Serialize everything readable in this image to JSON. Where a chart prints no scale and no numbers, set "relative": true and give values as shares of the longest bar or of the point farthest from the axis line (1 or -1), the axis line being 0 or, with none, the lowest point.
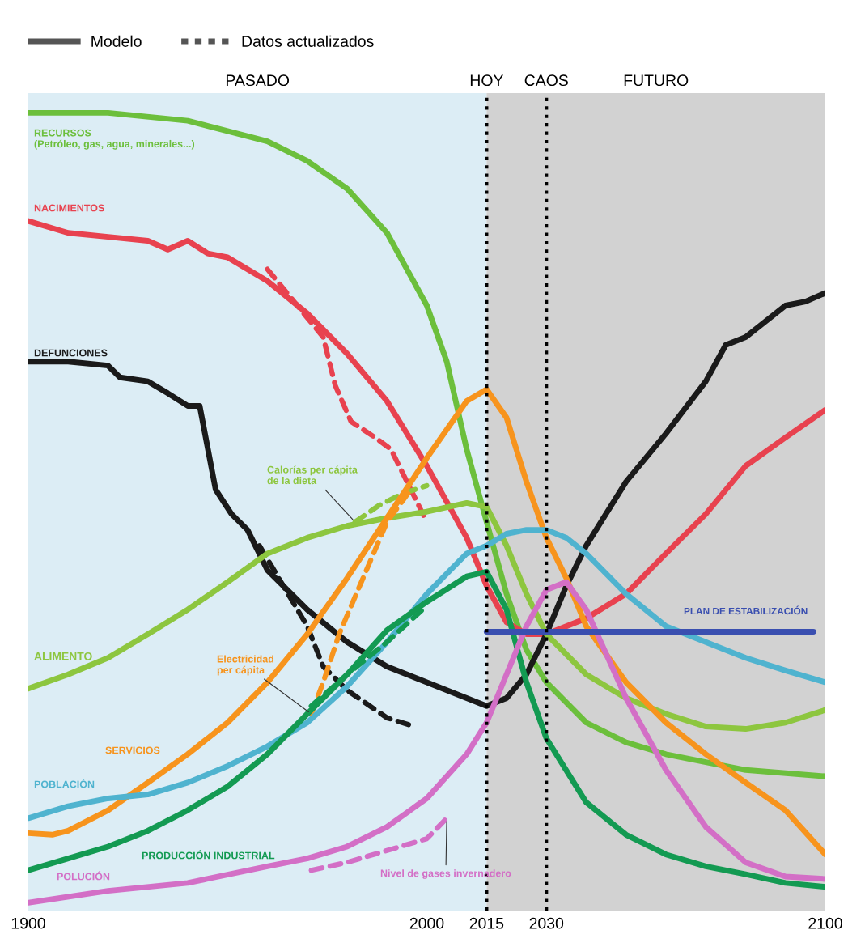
{
  "chart_data": {
    "type": "line",
    "relative": true,
    "xlim": [
      1900,
      2100
    ],
    "xticks": [
      1900,
      2000,
      2015,
      2030,
      2100
    ],
    "grid": false,
    "legend": "top left",
    "line_style": "solid",
    "annotations": [
      "Modelo",
      "Datos actualizados"
    ],
    "bands": [
      {
        "axis": "x",
        "from": 1900,
        "to": 2015,
        "label": "PASADO",
        "color": "#dcedf5"
      },
      {
        "axis": "x",
        "from": 2015,
        "to": 2100,
        "label": "FUTURO",
        "color": "#d2d2d2"
      }
    ],
    "ref_lines": [
      {
        "axis": "x",
        "value": 2015,
        "label": "HOY",
        "color": "#000000",
        "line_style": "dotted"
      },
      {
        "axis": "x",
        "value": 2030,
        "label": "CAOS",
        "color": "#000000",
        "line_style": "dotted"
      }
    ],
    "series": [
      {
        "name": "RECURSOS\n(Petróleo, gas, agua, minerales...)",
        "color": "#6cbf3c",
        "x": [
          1900,
          1920,
          1940,
          1960,
          1970,
          1980,
          1990,
          2000,
          2005,
          2010,
          2015,
          2020,
          2025,
          2030,
          2040,
          2050,
          2060,
          2080,
          2100
        ],
        "values": [
          1.0,
          1.0,
          0.99,
          0.964,
          0.939,
          0.904,
          0.848,
          0.756,
          0.685,
          0.574,
          0.482,
          0.391,
          0.32,
          0.279,
          0.228,
          0.203,
          0.188,
          0.168,
          0.16
        ]
      },
      {
        "name": "NACIMIENTOS",
        "color": "#e8424f",
        "x": [
          1900,
          1910,
          1920,
          1930,
          1935,
          1940,
          1945,
          1950,
          1960,
          1970,
          1980,
          1990,
          2000,
          2010,
          2015,
          2020,
          2025,
          2030,
          2040,
          2050,
          2060,
          2070,
          2080,
          2090,
          2100
        ],
        "values": [
          0.863,
          0.848,
          0.843,
          0.838,
          0.827,
          0.838,
          0.822,
          0.817,
          0.787,
          0.746,
          0.695,
          0.635,
          0.553,
          0.462,
          0.401,
          0.355,
          0.34,
          0.34,
          0.36,
          0.391,
          0.442,
          0.492,
          0.553,
          0.589,
          0.624
        ]
      },
      {
        "color": "#e8424f",
        "line_style": "dashed",
        "x": [
          1960,
          1974,
          1977,
          1981,
          1987,
          1991,
          1995,
          2000
        ],
        "values": [
          0.802,
          0.716,
          0.655,
          0.609,
          0.589,
          0.574,
          0.533,
          0.482
        ]
      },
      {
        "name": "DEFUNCIONES",
        "color": "#1a1a1a",
        "x": [
          1900,
          1910,
          1920,
          1923,
          1930,
          1935,
          1940,
          1943,
          1947,
          1951,
          1955,
          1960,
          1970,
          1980,
          1990,
          2000,
          2010,
          2015,
          2020,
          2025,
          2030,
          2035,
          2040,
          2050,
          2060,
          2070,
          2075,
          2080,
          2085,
          2090,
          2095,
          2100
        ],
        "values": [
          0.685,
          0.685,
          0.68,
          0.665,
          0.66,
          0.645,
          0.629,
          0.629,
          0.523,
          0.492,
          0.472,
          0.421,
          0.371,
          0.33,
          0.299,
          0.279,
          0.259,
          0.249,
          0.259,
          0.289,
          0.34,
          0.401,
          0.452,
          0.533,
          0.594,
          0.66,
          0.706,
          0.716,
          0.736,
          0.756,
          0.761,
          0.772
        ]
      },
      {
        "color": "#1a1a1a",
        "line_style": "dashed",
        "x": [
          1958,
          1964,
          1970,
          1974,
          1980,
          1990,
          1997
        ],
        "values": [
          0.452,
          0.401,
          0.35,
          0.299,
          0.269,
          0.234,
          0.223
        ]
      },
      {
        "name": "ALIMENTO",
        "color": "#8dc63f",
        "x": [
          1900,
          1910,
          1920,
          1930,
          1940,
          1950,
          1960,
          1970,
          1980,
          1990,
          2000,
          2010,
          2015,
          2020,
          2025,
          2030,
          2040,
          2050,
          2060,
          2070,
          2080,
          2090,
          2100
        ],
        "values": [
          0.271,
          0.289,
          0.31,
          0.34,
          0.371,
          0.406,
          0.442,
          0.462,
          0.477,
          0.487,
          0.495,
          0.506,
          0.501,
          0.452,
          0.391,
          0.34,
          0.289,
          0.259,
          0.239,
          0.223,
          0.22,
          0.228,
          0.244
        ]
      },
      {
        "name": "Calorías per cápita\nde la dieta",
        "color": "#8dc63f",
        "line_style": "dashed",
        "x": [
          1982,
          1988,
          1994,
          2000
        ],
        "values": [
          0.482,
          0.503,
          0.518,
          0.528
        ]
      },
      {
        "name": "SERVICIOS",
        "color": "#f7941d",
        "x": [
          1900,
          1906,
          1910,
          1920,
          1930,
          1940,
          1950,
          1960,
          1970,
          1980,
          1990,
          2000,
          2010,
          2015,
          2020,
          2025,
          2030,
          2035,
          2040,
          2050,
          2060,
          2070,
          2080,
          2090,
          2100
        ],
        "values": [
          0.088,
          0.086,
          0.091,
          0.117,
          0.152,
          0.188,
          0.228,
          0.279,
          0.34,
          0.411,
          0.487,
          0.563,
          0.635,
          0.65,
          0.614,
          0.533,
          0.462,
          0.411,
          0.35,
          0.279,
          0.228,
          0.188,
          0.152,
          0.117,
          0.061
        ]
      },
      {
        "name": "Electricidad\nper cápita",
        "color": "#f7941d",
        "line_style": "dashed",
        "x": [
          1971,
          1974,
          1978,
          1984,
          1990,
          1996
        ],
        "values": [
          0.239,
          0.279,
          0.34,
          0.411,
          0.482,
          0.523
        ]
      },
      {
        "name": "POBLACIÓN",
        "color": "#4fb3cf",
        "x": [
          1900,
          1910,
          1920,
          1930,
          1940,
          1950,
          1960,
          1970,
          1980,
          1990,
          2000,
          2010,
          2015,
          2020,
          2025,
          2030,
          2035,
          2040,
          2050,
          2060,
          2070,
          2080,
          2090,
          2100
        ],
        "values": [
          0.107,
          0.122,
          0.132,
          0.137,
          0.152,
          0.173,
          0.198,
          0.228,
          0.274,
          0.33,
          0.391,
          0.442,
          0.452,
          0.467,
          0.472,
          0.472,
          0.462,
          0.442,
          0.391,
          0.35,
          0.33,
          0.31,
          0.294,
          0.279
        ]
      },
      {
        "name": "PRODUCCIÓN INDUSTRIAL",
        "color": "#139a52",
        "x": [
          1900,
          1910,
          1920,
          1930,
          1940,
          1950,
          1960,
          1970,
          1980,
          1990,
          2000,
          2010,
          2015,
          2020,
          2025,
          2030,
          2040,
          2050,
          2060,
          2070,
          2080,
          2090,
          2100
        ],
        "values": [
          0.041,
          0.056,
          0.071,
          0.091,
          0.117,
          0.147,
          0.188,
          0.239,
          0.289,
          0.345,
          0.381,
          0.413,
          0.419,
          0.371,
          0.279,
          0.208,
          0.127,
          0.086,
          0.061,
          0.046,
          0.036,
          0.025,
          0.02
        ]
      },
      {
        "color": "#139a52",
        "line_style": "dashed",
        "x": [
          1971,
          1980,
          1990,
          2000
        ],
        "values": [
          0.249,
          0.289,
          0.33,
          0.376
        ]
      },
      {
        "name": "POLUCIÓN",
        "color": "#d36fc6",
        "x": [
          1900,
          1920,
          1940,
          1960,
          1970,
          1980,
          1990,
          2000,
          2010,
          2015,
          2020,
          2025,
          2030,
          2035,
          2040,
          2050,
          2060,
          2070,
          2080,
          2090,
          2100
        ],
        "values": [
          0.0,
          0.015,
          0.025,
          0.046,
          0.056,
          0.071,
          0.096,
          0.132,
          0.188,
          0.228,
          0.289,
          0.35,
          0.396,
          0.406,
          0.371,
          0.259,
          0.168,
          0.096,
          0.051,
          0.033,
          0.03
        ]
      },
      {
        "name": "Nivel de gases invernadero",
        "color": "#d36fc6",
        "line_style": "dashed",
        "x": [
          1971,
          1980,
          1990,
          2000,
          2005
        ],
        "values": [
          0.041,
          0.051,
          0.066,
          0.081,
          0.107
        ]
      },
      {
        "name": "PLAN DE ESTABILIZACIÓN",
        "color": "#3a4fb0",
        "x": [
          2015,
          2097
        ],
        "values": [
          0.343,
          0.343
        ]
      }
    ]
  }
}
